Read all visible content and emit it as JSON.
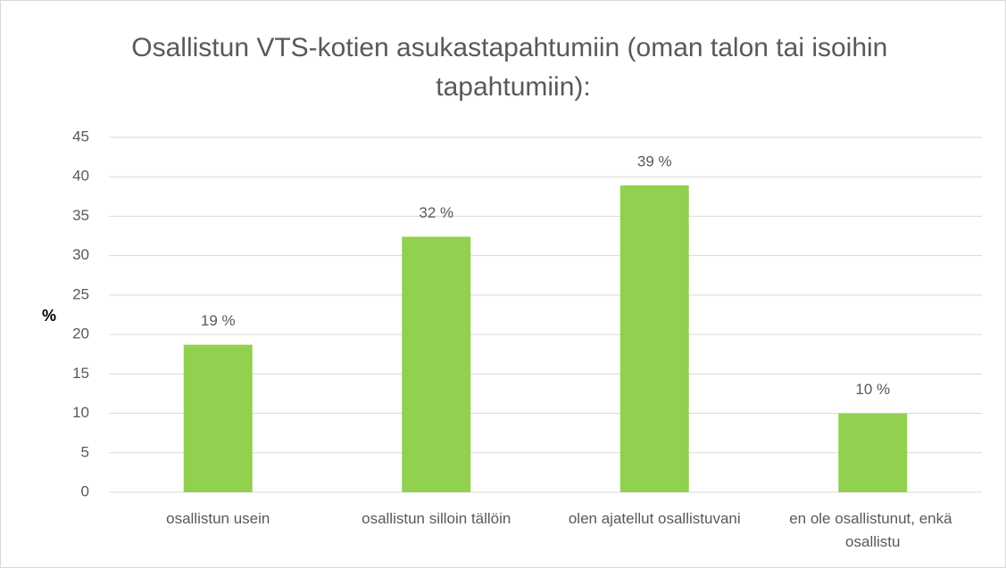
{
  "chart_data": {
    "type": "bar",
    "title": "Osallistun VTS-kotien asukastapahtumiin (oman talon tai isoihin tapahtumiin):",
    "y_label": "%",
    "categories": [
      "osallistun usein",
      "osallistun silloin tällöin",
      "olen ajatellut osallistuvani",
      "en ole osallistunut, enkä osallistu"
    ],
    "values": [
      18.7,
      32.4,
      38.9,
      10
    ],
    "value_labels": [
      "19 %",
      "32 %",
      "39 %",
      "10 %"
    ],
    "color": "#92d050",
    "ylim": [
      0,
      45
    ],
    "yticks": [
      0,
      5,
      10,
      15,
      20,
      25,
      30,
      35,
      40,
      45
    ],
    "grid": true
  }
}
